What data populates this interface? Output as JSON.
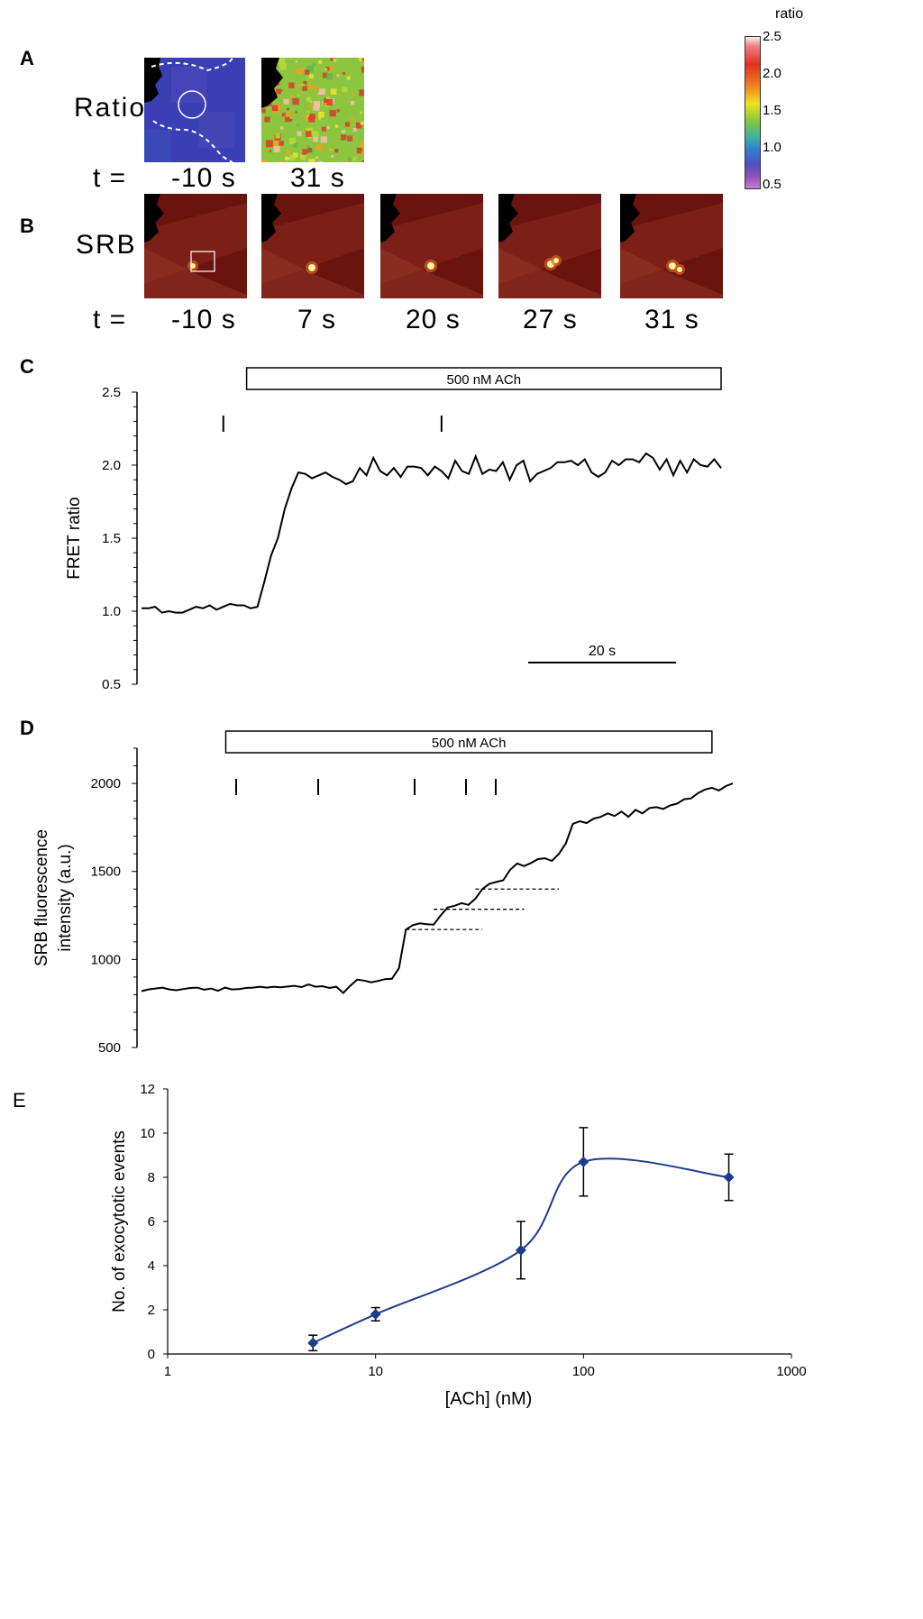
{
  "panel_a": {
    "letter": "A",
    "row_label": "Ratio",
    "t_label": "t =",
    "times": [
      "-10 s",
      "31 s"
    ]
  },
  "colorbar": {
    "title": "ratio",
    "ticks": [
      "2.5",
      "2.0",
      "1.5",
      "1.0",
      "0.5"
    ]
  },
  "panel_b": {
    "letter": "B",
    "row_label": "SRB",
    "t_label": "t =",
    "times": [
      "-10 s",
      "7 s",
      "20 s",
      "27 s",
      "31 s"
    ]
  },
  "chart_data": [
    {
      "panel": "C",
      "type": "line",
      "ylabel": "FRET ratio",
      "ylim": [
        0.5,
        2.5
      ],
      "yticks": [
        "0.5",
        "1.0",
        "1.5",
        "2.0",
        "2.5"
      ],
      "stimulus_label": "500 nM ACh",
      "scalebar_label": "20 s",
      "event_marks": [
        12,
        44
      ],
      "values": [
        1.02,
        1.02,
        1.03,
        0.99,
        1.0,
        0.99,
        0.99,
        1.01,
        1.03,
        1.02,
        1.04,
        1.01,
        1.03,
        1.05,
        1.04,
        1.04,
        1.02,
        1.03,
        1.2,
        1.38,
        1.5,
        1.7,
        1.84,
        1.95,
        1.94,
        1.91,
        1.93,
        1.95,
        1.92,
        1.9,
        1.87,
        1.89,
        1.98,
        1.93,
        2.05,
        1.96,
        1.93,
        1.98,
        1.92,
        1.99,
        1.99,
        1.98,
        1.93,
        1.99,
        1.96,
        1.91,
        2.03,
        1.96,
        1.94,
        2.06,
        1.94,
        1.97,
        1.96,
        2.02,
        1.9,
        2.0,
        2.03,
        1.89,
        1.94,
        1.96,
        1.98,
        2.02,
        2.02,
        2.03,
        2.0,
        2.04,
        1.95,
        1.92,
        1.95,
        2.03,
        2.0,
        2.04,
        2.04,
        2.02,
        2.08,
        2.05,
        1.97,
        2.04,
        1.93,
        2.03,
        1.95,
        2.04,
        2.0,
        1.99,
        2.04,
        1.98
      ]
    },
    {
      "panel": "D",
      "type": "line",
      "ylabel": "SRB fluorescence intensity (a.u.)",
      "ylim": [
        500,
        2200
      ],
      "yticks": [
        "500",
        "1000",
        "1500",
        "2000"
      ],
      "stimulus_label": "500 nM ACh",
      "event_marks": [
        10,
        19,
        29,
        34,
        37
      ],
      "values": [
        820,
        830,
        835,
        840,
        830,
        825,
        832,
        838,
        840,
        828,
        835,
        822,
        840,
        830,
        832,
        838,
        840,
        845,
        840,
        845,
        842,
        846,
        850,
        843,
        858,
        845,
        848,
        838,
        845,
        810,
        850,
        885,
        880,
        870,
        878,
        888,
        890,
        950,
        1170,
        1195,
        1205,
        1200,
        1198,
        1250,
        1295,
        1305,
        1320,
        1310,
        1345,
        1400,
        1430,
        1440,
        1450,
        1510,
        1545,
        1530,
        1548,
        1570,
        1575,
        1560,
        1600,
        1660,
        1770,
        1785,
        1775,
        1800,
        1810,
        1830,
        1815,
        1840,
        1810,
        1850,
        1830,
        1860,
        1865,
        1855,
        1875,
        1885,
        1910,
        1915,
        1945,
        1965,
        1975,
        1960,
        1985,
        2000
      ]
    },
    {
      "panel": "E",
      "type": "scatter",
      "xlabel": "[ACh] (nM)",
      "ylabel": "No. of exocytotic events",
      "x_scale": "log",
      "xlim": [
        1,
        1000
      ],
      "ylim": [
        0,
        12
      ],
      "xticks": [
        "1",
        "10",
        "100",
        "1000"
      ],
      "yticks": [
        "0",
        "2",
        "4",
        "6",
        "8",
        "10",
        "12"
      ],
      "x": [
        5,
        10,
        50,
        100,
        500
      ],
      "y": [
        0.5,
        1.8,
        4.7,
        8.7,
        8.0
      ],
      "error": [
        0.35,
        0.3,
        1.3,
        1.55,
        1.05
      ],
      "color": "#1f3b8c"
    }
  ],
  "panel_letters": {
    "c": "C",
    "d": "D",
    "e": "E"
  }
}
